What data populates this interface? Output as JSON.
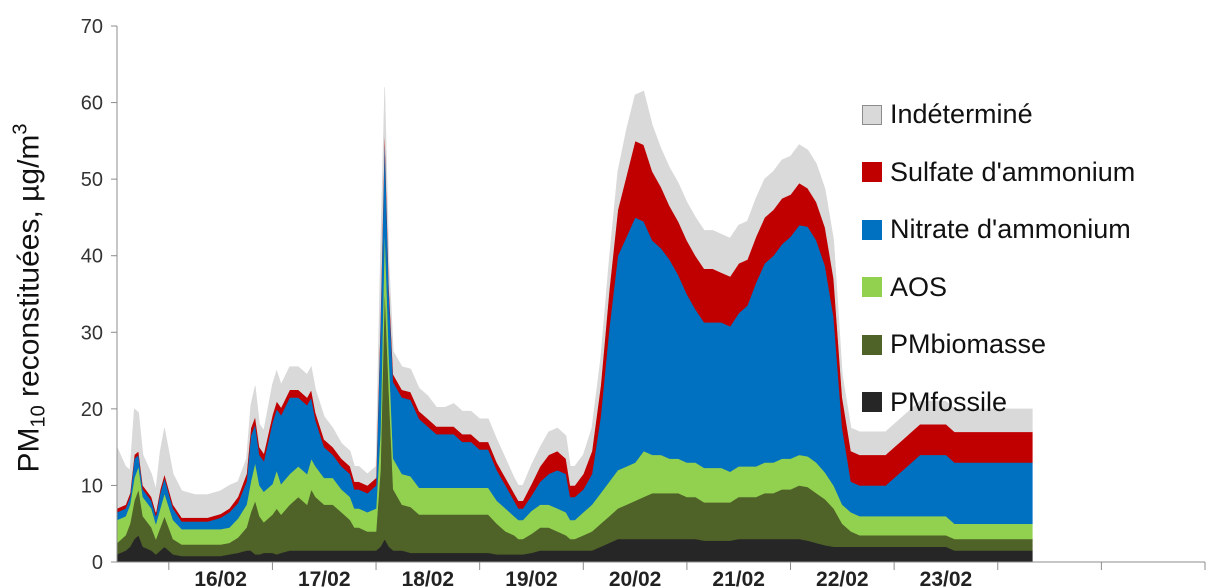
{
  "chart_data": {
    "type": "area",
    "stacked": true,
    "ylabel": {
      "prefix": "PM",
      "subscript": "10",
      "middle": " reconstituées, µg/m",
      "superscript": "3"
    },
    "ylim": [
      0,
      70
    ],
    "yticks": [
      "0",
      "10",
      "20",
      "30",
      "40",
      "50",
      "60",
      "70"
    ],
    "yticks_values": [
      0,
      10,
      20,
      30,
      40,
      50,
      60,
      70
    ],
    "xlim": [
      "2015-02-15T12:00",
      "2015-02-26T00:00"
    ],
    "xtick_labels": [
      "16/02",
      "17/02",
      "18/02",
      "19/02",
      "20/02",
      "21/02",
      "22/02",
      "23/02"
    ],
    "x_unit": "hours",
    "x": [
      0,
      2,
      3,
      4,
      5,
      6,
      8,
      9,
      10,
      11,
      13,
      15,
      18,
      21,
      24,
      26,
      28,
      30,
      31,
      32,
      33,
      34,
      36,
      37,
      38,
      40,
      42,
      44,
      45,
      46,
      48,
      50,
      52,
      54,
      55,
      56,
      58,
      60,
      61,
      62,
      63,
      64,
      66,
      68,
      70,
      72,
      74,
      75,
      76,
      78,
      80,
      82,
      84,
      86,
      88,
      90,
      92,
      93,
      94,
      96,
      98,
      100,
      102,
      104,
      105,
      106,
      108,
      110,
      112,
      114,
      116,
      118,
      120,
      122,
      124,
      126,
      128,
      130,
      132,
      134,
      136,
      138,
      140,
      142,
      144,
      146,
      148,
      150,
      152,
      154,
      156,
      158,
      160,
      162,
      164,
      166,
      168,
      170,
      172,
      174,
      176,
      178,
      180,
      182,
      184,
      186,
      188,
      190,
      192,
      194,
      196,
      198,
      200,
      202,
      204,
      206,
      208,
      210,
      212
    ],
    "series": [
      {
        "name": "PMfossile",
        "color": "#262626",
        "values": [
          1,
          1.5,
          2,
          3,
          3.5,
          2,
          1.5,
          1,
          1.5,
          2,
          1,
          0.8,
          0.8,
          0.8,
          0.8,
          1,
          1.2,
          1.5,
          1.5,
          1,
          1,
          1.2,
          1.2,
          1,
          1.2,
          1.5,
          1.5,
          1.5,
          1.5,
          1.5,
          1.5,
          1.5,
          1.5,
          1.5,
          1.5,
          1.5,
          1.5,
          1.5,
          2,
          3,
          2,
          1.5,
          1.5,
          1.2,
          1.2,
          1.2,
          1.2,
          1.2,
          1.2,
          1.2,
          1.2,
          1.2,
          1.2,
          1.2,
          1,
          1,
          1,
          1,
          1,
          1.2,
          1.5,
          1.5,
          1.5,
          1.5,
          1.5,
          1.5,
          1.5,
          1.5,
          2,
          2.5,
          3,
          3,
          3,
          3,
          3,
          3,
          3,
          3,
          3,
          3,
          2.8,
          2.8,
          2.8,
          2.8,
          3,
          3,
          3,
          3,
          3,
          3,
          3,
          3,
          2.8,
          2.5,
          2.2,
          2,
          2,
          2,
          2,
          2,
          2,
          2,
          2,
          2,
          2,
          2,
          2,
          2,
          2,
          1.5,
          1.5,
          1.5,
          1.5,
          1.5,
          1.5,
          1.5,
          1.5,
          1.5,
          1.5
        ]
      },
      {
        "name": "PMbiomasse",
        "color": "#4f6228",
        "values": [
          1.5,
          2,
          3,
          5,
          6,
          4,
          3,
          2,
          3,
          4,
          2,
          1.5,
          1.5,
          1.5,
          1.5,
          1.5,
          2,
          3,
          5,
          7,
          5,
          4,
          5,
          6,
          5,
          6,
          7,
          6,
          8,
          7,
          6,
          6,
          5,
          4,
          3,
          3,
          2.5,
          2.5,
          10,
          33,
          20,
          8,
          6,
          6,
          5,
          5,
          5,
          5,
          5,
          5,
          5,
          5,
          5,
          5,
          4,
          3,
          2.5,
          2,
          2,
          2.5,
          3,
          3,
          2.5,
          2,
          1.5,
          1.5,
          2,
          2.5,
          3,
          3.5,
          4,
          4.5,
          5,
          5.5,
          6,
          6,
          6,
          6,
          5.5,
          5.5,
          5,
          5,
          5,
          5,
          5.5,
          5.5,
          5.5,
          6,
          6,
          6.5,
          6.5,
          7,
          7,
          6.5,
          6,
          5,
          3,
          2,
          1.5,
          1.5,
          1.5,
          1.5,
          1.5,
          1.5,
          1.5,
          1.5,
          1.5,
          1.5,
          1.5,
          1.5,
          1.5,
          1.5,
          1.5,
          1.5,
          1.5,
          1.5,
          1.5,
          1.5,
          1.5
        ]
      },
      {
        "name": "AOS",
        "color": "#92d050",
        "values": [
          3,
          2.5,
          2.5,
          3,
          3,
          2.5,
          2.5,
          2,
          2.5,
          3,
          2.5,
          2,
          2,
          2,
          2,
          2,
          2.5,
          3,
          4,
          5,
          4,
          4,
          4,
          5,
          4,
          4,
          4,
          4,
          4,
          4,
          3.5,
          3.5,
          3,
          3,
          2.5,
          2.5,
          2.5,
          3,
          5,
          8,
          5,
          4,
          4,
          4,
          3.5,
          3.5,
          3.5,
          3.5,
          3.5,
          3.5,
          3.5,
          3.5,
          3.5,
          3.5,
          3,
          3,
          2.5,
          2.5,
          2.5,
          3,
          3,
          3,
          3,
          3,
          2.5,
          2.5,
          3,
          3.5,
          4,
          4.5,
          5,
          5,
          5,
          6,
          5,
          5,
          4.5,
          4.5,
          4.5,
          4.5,
          4.5,
          4.5,
          4.5,
          4,
          4,
          4,
          4,
          4,
          4,
          4,
          4,
          4,
          4,
          4,
          3.5,
          3,
          2.5,
          2.5,
          2.5,
          2.5,
          2.5,
          2.5,
          2.5,
          2.5,
          2.5,
          2.5,
          2.5,
          2.5,
          2.5,
          2,
          2,
          2,
          2,
          2,
          2,
          2,
          2,
          2,
          2
        ]
      },
      {
        "name": "Nitrate d'ammonium",
        "color": "#0070c0",
        "values": [
          1,
          1,
          1,
          2.5,
          1.5,
          1,
          1,
          1,
          2,
          2,
          1.5,
          1,
          1,
          1,
          1.5,
          2,
          2,
          3,
          6,
          5,
          4,
          4,
          8,
          8,
          9,
          10,
          9,
          9,
          8,
          6,
          4,
          3,
          3,
          3,
          2.5,
          2.5,
          2.5,
          3,
          14,
          12,
          8,
          10,
          10,
          10,
          9,
          8,
          7,
          7,
          7,
          7,
          6,
          6,
          5,
          5,
          4,
          3,
          2,
          1.5,
          1.5,
          2,
          3,
          4,
          5,
          5,
          3,
          3,
          3,
          4,
          10,
          20,
          28,
          30,
          32,
          30,
          28,
          27,
          26,
          24,
          22,
          20,
          19,
          19,
          19,
          19,
          20,
          21,
          24,
          26,
          27,
          28,
          29,
          30,
          30,
          29,
          27,
          22,
          10,
          4,
          4,
          4,
          4,
          4,
          5,
          6,
          7,
          8,
          8,
          8,
          8,
          8,
          8,
          8,
          8,
          8,
          8,
          8,
          8,
          8,
          8
        ]
      },
      {
        "name": "Sulfate d'ammonium",
        "color": "#c00000",
        "values": [
          0.5,
          0.5,
          0.5,
          0.5,
          0.5,
          0.5,
          0.5,
          0.5,
          0.5,
          0.5,
          0.5,
          0.5,
          0.5,
          0.5,
          0.5,
          0.5,
          0.8,
          1,
          1,
          1,
          1,
          1,
          1,
          1,
          1,
          1,
          1,
          1,
          1,
          1,
          1,
          1,
          1,
          1,
          1,
          1,
          1,
          1,
          1,
          1,
          1,
          1,
          1,
          1,
          1,
          1,
          1,
          1,
          1,
          1,
          1,
          1,
          1,
          1,
          1,
          1,
          1,
          1,
          1,
          1.5,
          2,
          2.5,
          2.5,
          2,
          1.5,
          1.5,
          2,
          3,
          4,
          5,
          6,
          8,
          10,
          10,
          9,
          8,
          7,
          7,
          7,
          7,
          7,
          7,
          6.5,
          6.5,
          6.5,
          6,
          6,
          6,
          6,
          6,
          5.5,
          5.5,
          5,
          5,
          5,
          5,
          4,
          4,
          4,
          4,
          4,
          4,
          4,
          4,
          4,
          4,
          4,
          4,
          4,
          4,
          4,
          4,
          4,
          4,
          4,
          4,
          4,
          4,
          4
        ]
      },
      {
        "name": "Indéterminé",
        "color": "#d9d9d9",
        "values": [
          8,
          5,
          3,
          6,
          5,
          4,
          3,
          3,
          5,
          6,
          4,
          3.5,
          3,
          3,
          3,
          3,
          2,
          2,
          3,
          4,
          3,
          3,
          4,
          4,
          3,
          3,
          3,
          3,
          3,
          3,
          3,
          2.5,
          2,
          2,
          2,
          2,
          1.5,
          1.5,
          8,
          5,
          3,
          3,
          3,
          3,
          3,
          3,
          2.5,
          2.5,
          2.5,
          3,
          3,
          3,
          3,
          3,
          3,
          2.5,
          2,
          2,
          2,
          2.5,
          2.5,
          3,
          3,
          3,
          2.5,
          2.5,
          2.5,
          3,
          3.5,
          4,
          5,
          6,
          6,
          7,
          6,
          5,
          5,
          5,
          5,
          5,
          5,
          5,
          5,
          5,
          5,
          5,
          5,
          5,
          5,
          5,
          5,
          5,
          5,
          5,
          5,
          5,
          3,
          3,
          3,
          3,
          3,
          3,
          3,
          3,
          3,
          3,
          3,
          3,
          3,
          3,
          3,
          3,
          3,
          3,
          3,
          3,
          3,
          3,
          3
        ]
      }
    ],
    "legend": [
      {
        "label": "Indéterminé",
        "color": "#d9d9d9"
      },
      {
        "label": "Sulfate d'ammonium",
        "color": "#c00000"
      },
      {
        "label": "Nitrate d'ammonium",
        "color": "#0070c0"
      },
      {
        "label": "AOS",
        "color": "#92d050"
      },
      {
        "label": "PMbiomasse",
        "color": "#4f6228"
      },
      {
        "label": "PMfossile",
        "color": "#262626"
      }
    ],
    "legend_position": "right",
    "grid": false
  }
}
